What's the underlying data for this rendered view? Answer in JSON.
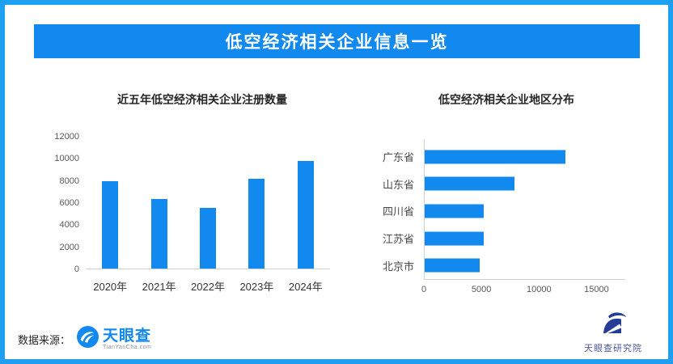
{
  "header": {
    "title": "低空经济相关企业信息一览",
    "bg_color": "#1189ef",
    "text_color": "#ffffff"
  },
  "page": {
    "border_color": "#1e9ff2",
    "background_color": "#ffffff",
    "accent_color": "#1189ef"
  },
  "chart_data": [
    {
      "type": "bar",
      "orientation": "vertical",
      "title": "近五年低空经济相关企业注册数量",
      "categories": [
        "2020年",
        "2021年",
        "2022年",
        "2023年",
        "2024年"
      ],
      "values": [
        7900,
        6300,
        5500,
        8100,
        9750
      ],
      "yticks": [
        0,
        2000,
        4000,
        6000,
        8000,
        10000,
        12000
      ],
      "ylim": [
        0,
        12000
      ],
      "xlabel": "",
      "ylabel": "",
      "grid": false,
      "legend": false,
      "bar_color": "#1189ef"
    },
    {
      "type": "bar",
      "orientation": "horizontal",
      "title": "低空经济相关企业地区分布",
      "categories": [
        "广东省",
        "山东省",
        "四川省",
        "江苏省",
        "北京市"
      ],
      "values": [
        12250,
        7800,
        5100,
        5100,
        4800
      ],
      "xticks": [
        0,
        5000,
        10000,
        15000
      ],
      "xlim": [
        0,
        17500
      ],
      "xlabel": "",
      "ylabel": "",
      "grid": false,
      "legend": false,
      "bar_color": "#1189ef"
    }
  ],
  "footer": {
    "source_label": "数据来源：",
    "source_logo_name": "天眼查",
    "source_logo_sub": "TianYanCha.com",
    "research_logo_label": "天眼查研究院"
  }
}
